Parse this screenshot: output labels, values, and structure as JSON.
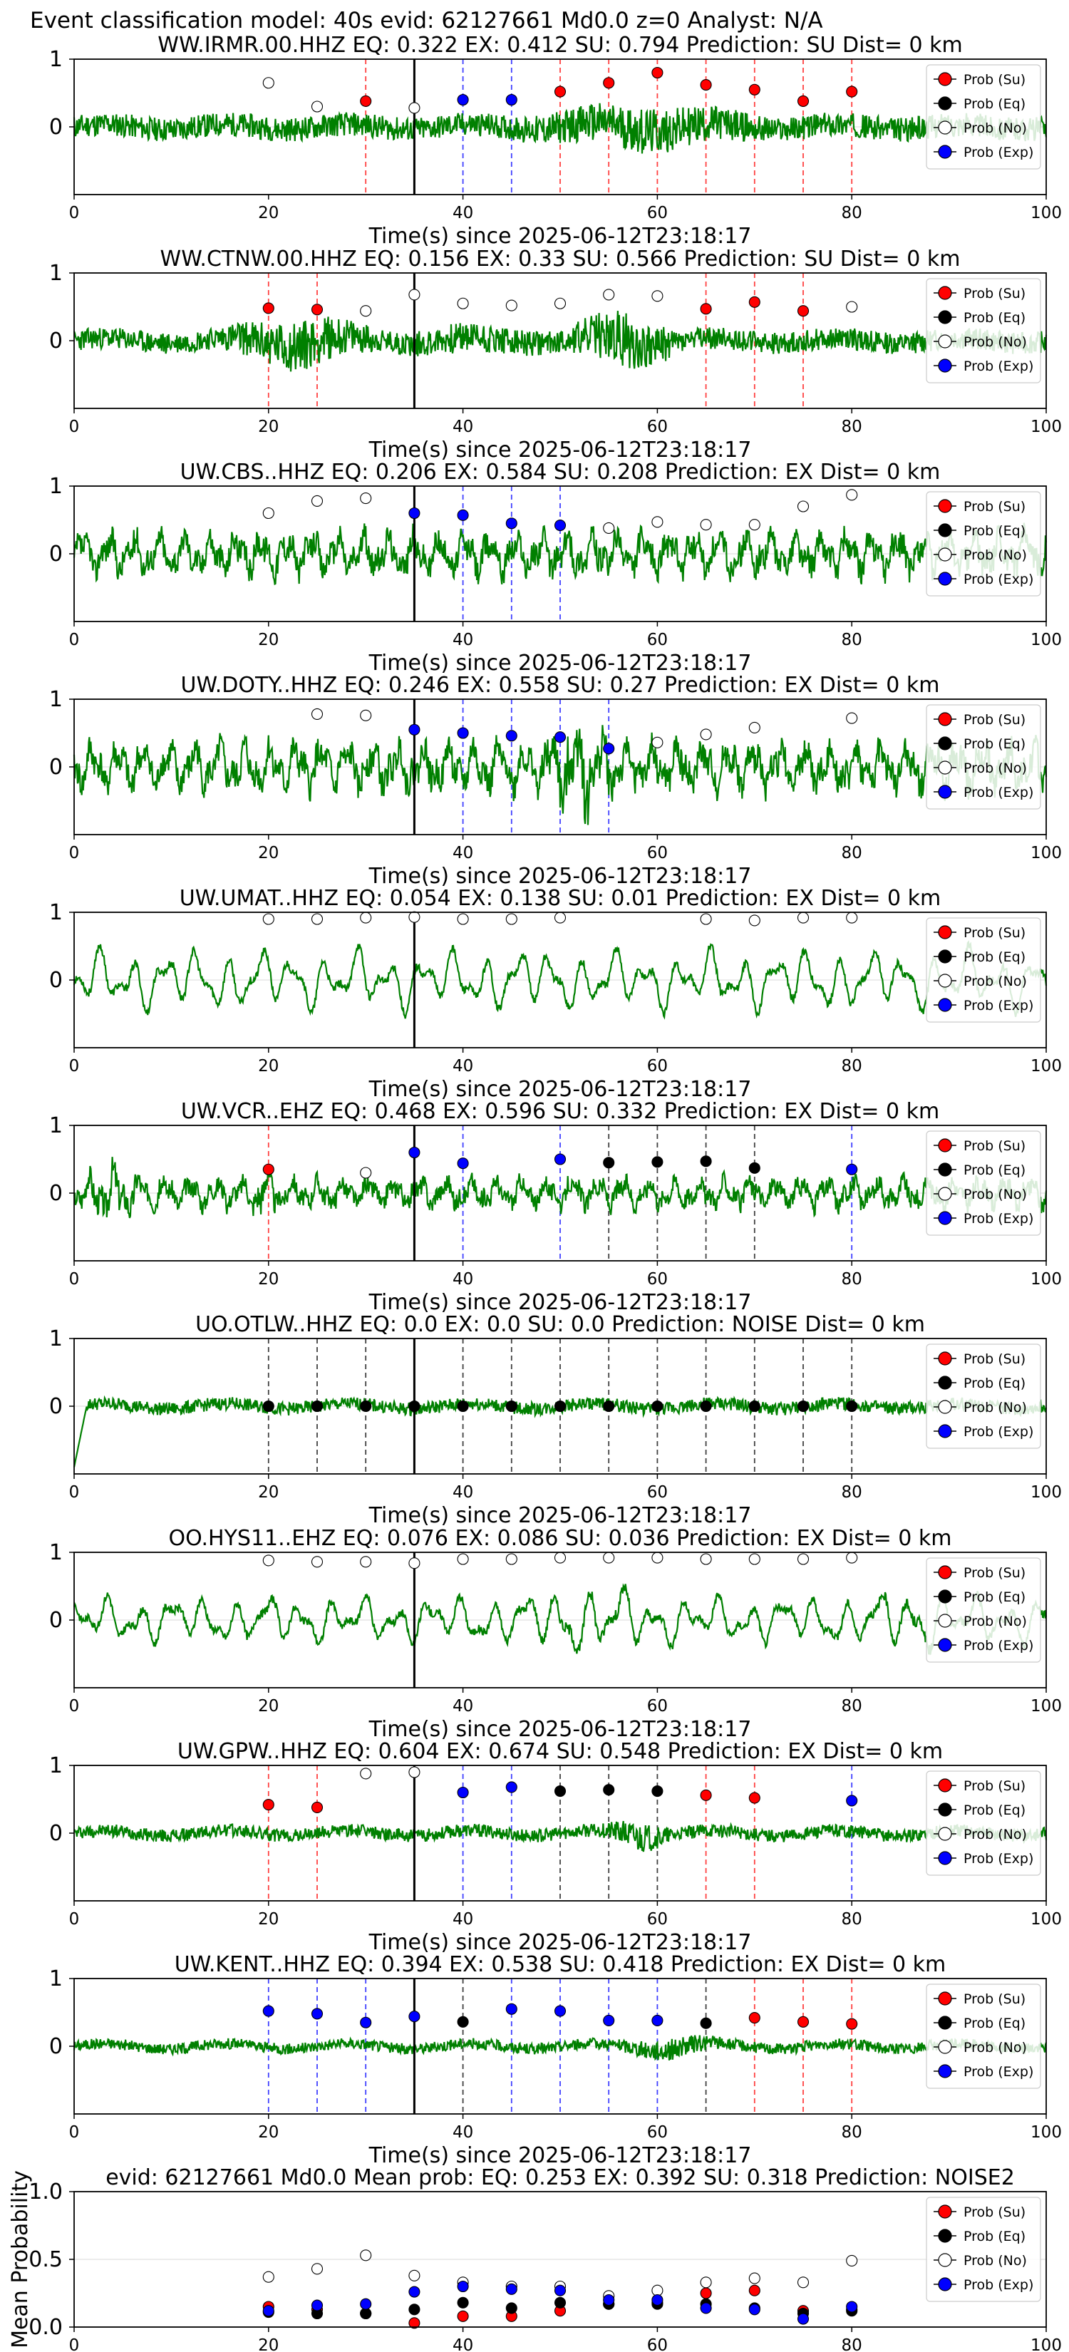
{
  "suptitle": "Event classification model: 40s evid: 62127661 Md0.0 z=0 Analyst: N/A",
  "legend_labels": [
    "Prob (Su)",
    "Prob (Eq)",
    "Prob (No)",
    "Prob (Exp)"
  ],
  "colors": {
    "su": "#ff0000",
    "eq": "#000000",
    "no": "#ffffff",
    "exp": "#0000ff",
    "trace": "#008000"
  },
  "chart_data": [
    {
      "type": "line",
      "title": "WW.IRMR.00.HHZ    EQ: 0.322  EX: 0.412  SU: 0.794   Prediction: SU    Dist= 0 km",
      "xlabel": "Time(s) since 2025-06-12T23:18:17",
      "xlim": [
        0,
        100
      ],
      "ylim": [
        -1,
        1
      ],
      "xticks": [
        0,
        20,
        40,
        60,
        80,
        100
      ],
      "yticks": [
        0,
        1
      ],
      "points": [
        {
          "t": 20,
          "p": 0.65,
          "c": "No"
        },
        {
          "t": 25,
          "p": 0.3,
          "c": "No"
        },
        {
          "t": 30,
          "p": 0.38,
          "c": "Su"
        },
        {
          "t": 35,
          "p": 0.28,
          "c": "No"
        },
        {
          "t": 40,
          "p": 0.4,
          "c": "Exp"
        },
        {
          "t": 45,
          "p": 0.4,
          "c": "Exp"
        },
        {
          "t": 50,
          "p": 0.52,
          "c": "Su"
        },
        {
          "t": 55,
          "p": 0.65,
          "c": "Su"
        },
        {
          "t": 60,
          "p": 0.8,
          "c": "Su"
        },
        {
          "t": 65,
          "p": 0.62,
          "c": "Su"
        },
        {
          "t": 70,
          "p": 0.55,
          "c": "Su"
        },
        {
          "t": 75,
          "p": 0.38,
          "c": "Su"
        },
        {
          "t": 80,
          "p": 0.52,
          "c": "Su"
        }
      ],
      "trace": {
        "seed": 11,
        "amp": 0.22,
        "bursts": [
          [
            45,
            72,
            2.0
          ]
        ],
        "style": "noise"
      }
    },
    {
      "type": "line",
      "title": "WW.CTNW.00.HHZ    EQ: 0.156  EX: 0.33  SU: 0.566   Prediction: SU    Dist= 0 km",
      "xlabel": "Time(s) since 2025-06-12T23:18:17",
      "xlim": [
        0,
        100
      ],
      "ylim": [
        -1,
        1
      ],
      "xticks": [
        0,
        20,
        40,
        60,
        80,
        100
      ],
      "yticks": [
        0,
        1
      ],
      "points": [
        {
          "t": 20,
          "p": 0.48,
          "c": "Su"
        },
        {
          "t": 25,
          "p": 0.46,
          "c": "Su"
        },
        {
          "t": 30,
          "p": 0.44,
          "c": "No"
        },
        {
          "t": 35,
          "p": 0.68,
          "c": "No"
        },
        {
          "t": 40,
          "p": 0.55,
          "c": "No"
        },
        {
          "t": 45,
          "p": 0.52,
          "c": "No"
        },
        {
          "t": 50,
          "p": 0.55,
          "c": "No"
        },
        {
          "t": 55,
          "p": 0.68,
          "c": "No"
        },
        {
          "t": 60,
          "p": 0.66,
          "c": "No"
        },
        {
          "t": 65,
          "p": 0.47,
          "c": "Su"
        },
        {
          "t": 70,
          "p": 0.57,
          "c": "Su"
        },
        {
          "t": 75,
          "p": 0.44,
          "c": "Su"
        },
        {
          "t": 80,
          "p": 0.5,
          "c": "No"
        }
      ],
      "trace": {
        "seed": 23,
        "amp": 0.2,
        "bursts": [
          [
            14,
            32,
            2.5
          ],
          [
            50,
            63,
            2.8
          ],
          [
            32,
            50,
            1.5
          ]
        ],
        "style": "noise"
      }
    },
    {
      "type": "line",
      "title": "UW.CBS..HHZ   EQ: 0.206  EX: 0.584  SU: 0.208   Prediction: EX    Dist= 0 km",
      "xlabel": "Time(s) since 2025-06-12T23:18:17",
      "xlim": [
        0,
        100
      ],
      "ylim": [
        -1,
        1
      ],
      "xticks": [
        0,
        20,
        40,
        60,
        80,
        100
      ],
      "yticks": [
        0,
        1
      ],
      "points": [
        {
          "t": 20,
          "p": 0.6,
          "c": "No"
        },
        {
          "t": 25,
          "p": 0.78,
          "c": "No"
        },
        {
          "t": 30,
          "p": 0.82,
          "c": "No"
        },
        {
          "t": 35,
          "p": 0.6,
          "c": "Exp"
        },
        {
          "t": 40,
          "p": 0.57,
          "c": "Exp"
        },
        {
          "t": 45,
          "p": 0.45,
          "c": "Exp"
        },
        {
          "t": 50,
          "p": 0.42,
          "c": "Exp"
        },
        {
          "t": 55,
          "p": 0.38,
          "c": "No"
        },
        {
          "t": 60,
          "p": 0.47,
          "c": "No"
        },
        {
          "t": 65,
          "p": 0.43,
          "c": "No"
        },
        {
          "t": 70,
          "p": 0.43,
          "c": "No"
        },
        {
          "t": 75,
          "p": 0.7,
          "c": "No"
        },
        {
          "t": 80,
          "p": 0.87,
          "c": "No"
        }
      ],
      "trace": {
        "seed": 37,
        "amp": 0.35,
        "bursts": [],
        "style": "wavy"
      }
    },
    {
      "type": "line",
      "title": "UW.DOTY..HHZ   EQ: 0.246  EX: 0.558  SU: 0.27   Prediction: EX    Dist= 0 km",
      "xlabel": "Time(s) since 2025-06-12T23:18:17",
      "xlim": [
        0,
        100
      ],
      "ylim": [
        -1,
        1
      ],
      "xticks": [
        0,
        20,
        40,
        60,
        80,
        100
      ],
      "yticks": [
        0,
        1
      ],
      "points": [
        {
          "t": 25,
          "p": 0.78,
          "c": "No"
        },
        {
          "t": 30,
          "p": 0.76,
          "c": "No"
        },
        {
          "t": 35,
          "p": 0.55,
          "c": "Exp"
        },
        {
          "t": 40,
          "p": 0.5,
          "c": "Exp"
        },
        {
          "t": 45,
          "p": 0.46,
          "c": "Exp"
        },
        {
          "t": 50,
          "p": 0.44,
          "c": "Exp"
        },
        {
          "t": 55,
          "p": 0.27,
          "c": "Exp"
        },
        {
          "t": 60,
          "p": 0.36,
          "c": "No"
        },
        {
          "t": 65,
          "p": 0.48,
          "c": "No"
        },
        {
          "t": 70,
          "p": 0.58,
          "c": "No"
        },
        {
          "t": 80,
          "p": 0.72,
          "c": "No"
        }
      ],
      "trace": {
        "seed": 41,
        "amp": 0.4,
        "bursts": [
          [
            48,
            56,
            2.2
          ]
        ],
        "style": "wavy"
      }
    },
    {
      "type": "line",
      "title": "UW.UMAT..HHZ   EQ: 0.054  EX: 0.138  SU: 0.01   Prediction: EX    Dist= 0 km",
      "xlabel": "Time(s) since 2025-06-12T23:18:17",
      "xlim": [
        0,
        100
      ],
      "ylim": [
        -1,
        1
      ],
      "xticks": [
        0,
        20,
        40,
        60,
        80,
        100
      ],
      "yticks": [
        0,
        1
      ],
      "points": [
        {
          "t": 20,
          "p": 0.9,
          "c": "No"
        },
        {
          "t": 25,
          "p": 0.9,
          "c": "No"
        },
        {
          "t": 30,
          "p": 0.92,
          "c": "No"
        },
        {
          "t": 35,
          "p": 0.93,
          "c": "No"
        },
        {
          "t": 40,
          "p": 0.9,
          "c": "No"
        },
        {
          "t": 45,
          "p": 0.9,
          "c": "No"
        },
        {
          "t": 50,
          "p": 0.92,
          "c": "No"
        },
        {
          "t": 65,
          "p": 0.9,
          "c": "No"
        },
        {
          "t": 70,
          "p": 0.88,
          "c": "No"
        },
        {
          "t": 75,
          "p": 0.92,
          "c": "No"
        },
        {
          "t": 80,
          "p": 0.92,
          "c": "No"
        }
      ],
      "trace": {
        "seed": 53,
        "amp": 0.45,
        "bursts": [],
        "style": "smooth"
      }
    },
    {
      "type": "line",
      "title": "UW.VCR..EHZ   EQ: 0.468  EX: 0.596  SU: 0.332   Prediction: EX    Dist= 0 km",
      "xlabel": "Time(s) since 2025-06-12T23:18:17",
      "xlim": [
        0,
        100
      ],
      "ylim": [
        -1,
        1
      ],
      "xticks": [
        0,
        20,
        40,
        60,
        80,
        100
      ],
      "yticks": [
        0,
        1
      ],
      "points": [
        {
          "t": 20,
          "p": 0.35,
          "c": "Su"
        },
        {
          "t": 30,
          "p": 0.3,
          "c": "No"
        },
        {
          "t": 35,
          "p": 0.6,
          "c": "Exp"
        },
        {
          "t": 40,
          "p": 0.44,
          "c": "Exp"
        },
        {
          "t": 50,
          "p": 0.5,
          "c": "Exp"
        },
        {
          "t": 55,
          "p": 0.45,
          "c": "Eq"
        },
        {
          "t": 60,
          "p": 0.46,
          "c": "Eq"
        },
        {
          "t": 65,
          "p": 0.47,
          "c": "Eq"
        },
        {
          "t": 70,
          "p": 0.37,
          "c": "Eq"
        },
        {
          "t": 80,
          "p": 0.35,
          "c": "Exp"
        }
      ],
      "trace": {
        "seed": 67,
        "amp": 0.25,
        "bursts": [
          [
            0,
            8,
            1.8
          ],
          [
            18,
            21,
            2.0
          ]
        ],
        "style": "wavy"
      }
    },
    {
      "type": "line",
      "title": "UO.OTLW..HHZ   EQ: 0.0  EX: 0.0  SU: 0.0   Prediction: NOISE    Dist= 0 km",
      "xlabel": "Time(s) since 2025-06-12T23:18:17",
      "xlim": [
        0,
        100
      ],
      "ylim": [
        -1,
        1
      ],
      "xticks": [
        0,
        20,
        40,
        60,
        80,
        100
      ],
      "yticks": [
        0,
        1
      ],
      "points": [
        {
          "t": 20,
          "p": 0.0,
          "c": "Eq"
        },
        {
          "t": 25,
          "p": 0.0,
          "c": "Eq"
        },
        {
          "t": 30,
          "p": 0.0,
          "c": "Eq"
        },
        {
          "t": 35,
          "p": 0.0,
          "c": "Eq"
        },
        {
          "t": 40,
          "p": 0.0,
          "c": "Eq"
        },
        {
          "t": 45,
          "p": 0.0,
          "c": "Eq"
        },
        {
          "t": 50,
          "p": 0.0,
          "c": "Eq"
        },
        {
          "t": 55,
          "p": 0.0,
          "c": "Eq"
        },
        {
          "t": 60,
          "p": 0.0,
          "c": "Eq"
        },
        {
          "t": 65,
          "p": 0.0,
          "c": "Eq"
        },
        {
          "t": 70,
          "p": 0.0,
          "c": "Eq"
        },
        {
          "t": 75,
          "p": 0.0,
          "c": "Eq"
        },
        {
          "t": 80,
          "p": 0.0,
          "c": "Eq"
        }
      ],
      "trace": {
        "seed": 79,
        "amp": 0.12,
        "bursts": [],
        "style": "noise",
        "start_dip": true
      }
    },
    {
      "type": "line",
      "title": "OO.HYS11..EHZ   EQ: 0.076  EX: 0.086  SU: 0.036   Prediction: EX    Dist= 0 km",
      "xlabel": "Time(s) since 2025-06-12T23:18:17",
      "xlim": [
        0,
        100
      ],
      "ylim": [
        -1,
        1
      ],
      "xticks": [
        0,
        20,
        40,
        60,
        80,
        100
      ],
      "yticks": [
        0,
        1
      ],
      "points": [
        {
          "t": 20,
          "p": 0.88,
          "c": "No"
        },
        {
          "t": 25,
          "p": 0.86,
          "c": "No"
        },
        {
          "t": 30,
          "p": 0.86,
          "c": "No"
        },
        {
          "t": 35,
          "p": 0.84,
          "c": "No"
        },
        {
          "t": 40,
          "p": 0.9,
          "c": "No"
        },
        {
          "t": 45,
          "p": 0.9,
          "c": "No"
        },
        {
          "t": 50,
          "p": 0.92,
          "c": "No"
        },
        {
          "t": 55,
          "p": 0.92,
          "c": "No"
        },
        {
          "t": 60,
          "p": 0.92,
          "c": "No"
        },
        {
          "t": 65,
          "p": 0.9,
          "c": "No"
        },
        {
          "t": 70,
          "p": 0.9,
          "c": "No"
        },
        {
          "t": 75,
          "p": 0.9,
          "c": "No"
        },
        {
          "t": 80,
          "p": 0.92,
          "c": "No"
        }
      ],
      "trace": {
        "seed": 83,
        "amp": 0.35,
        "bursts": [
          [
            45,
            62,
            1.6
          ],
          [
            80,
            92,
            1.4
          ]
        ],
        "style": "smooth"
      }
    },
    {
      "type": "line",
      "title": "UW.GPW..HHZ   EQ: 0.604  EX: 0.674  SU: 0.548   Prediction: EX    Dist= 0 km",
      "xlabel": "Time(s) since 2025-06-12T23:18:17",
      "xlim": [
        0,
        100
      ],
      "ylim": [
        -1,
        1
      ],
      "xticks": [
        0,
        20,
        40,
        60,
        80,
        100
      ],
      "yticks": [
        0,
        1
      ],
      "points": [
        {
          "t": 20,
          "p": 0.42,
          "c": "Su"
        },
        {
          "t": 25,
          "p": 0.38,
          "c": "Su"
        },
        {
          "t": 30,
          "p": 0.88,
          "c": "No"
        },
        {
          "t": 35,
          "p": 0.9,
          "c": "No"
        },
        {
          "t": 40,
          "p": 0.6,
          "c": "Exp"
        },
        {
          "t": 45,
          "p": 0.68,
          "c": "Exp"
        },
        {
          "t": 50,
          "p": 0.62,
          "c": "Eq"
        },
        {
          "t": 55,
          "p": 0.64,
          "c": "Eq"
        },
        {
          "t": 60,
          "p": 0.62,
          "c": "Eq"
        },
        {
          "t": 65,
          "p": 0.56,
          "c": "Su"
        },
        {
          "t": 70,
          "p": 0.52,
          "c": "Su"
        },
        {
          "t": 80,
          "p": 0.48,
          "c": "Exp"
        }
      ],
      "trace": {
        "seed": 97,
        "amp": 0.12,
        "bursts": [
          [
            54,
            62,
            2.4
          ]
        ],
        "style": "noise"
      }
    },
    {
      "type": "line",
      "title": "UW.KENT..HHZ   EQ: 0.394  EX: 0.538  SU: 0.418   Prediction: EX    Dist= 0 km",
      "xlabel": "Time(s) since 2025-06-12T23:18:17",
      "xlim": [
        0,
        100
      ],
      "ylim": [
        -1,
        1
      ],
      "xticks": [
        0,
        20,
        40,
        60,
        80,
        100
      ],
      "yticks": [
        0,
        1
      ],
      "points": [
        {
          "t": 20,
          "p": 0.52,
          "c": "Exp"
        },
        {
          "t": 25,
          "p": 0.48,
          "c": "Exp"
        },
        {
          "t": 30,
          "p": 0.35,
          "c": "Exp"
        },
        {
          "t": 35,
          "p": 0.44,
          "c": "Exp"
        },
        {
          "t": 40,
          "p": 0.36,
          "c": "Eq"
        },
        {
          "t": 45,
          "p": 0.55,
          "c": "Exp"
        },
        {
          "t": 50,
          "p": 0.52,
          "c": "Exp"
        },
        {
          "t": 55,
          "p": 0.38,
          "c": "Exp"
        },
        {
          "t": 60,
          "p": 0.38,
          "c": "Exp"
        },
        {
          "t": 65,
          "p": 0.34,
          "c": "Eq"
        },
        {
          "t": 70,
          "p": 0.42,
          "c": "Su"
        },
        {
          "t": 75,
          "p": 0.36,
          "c": "Su"
        },
        {
          "t": 80,
          "p": 0.33,
          "c": "Su"
        }
      ],
      "trace": {
        "seed": 101,
        "amp": 0.1,
        "bursts": [
          [
            55,
            68,
            2.0
          ]
        ],
        "style": "noise"
      }
    },
    {
      "type": "scatter",
      "title": "evid: 62127661  Md0.0   Mean prob:   EQ: 0.253  EX: 0.392  SU: 0.318   Prediction: NOISE2",
      "xlabel": "",
      "ylabel": "Mean Probability",
      "xlim": [
        0,
        100
      ],
      "ylim": [
        0,
        1
      ],
      "xticks": [
        0,
        20,
        40,
        60,
        80,
        100
      ],
      "yticks": [
        0.0,
        0.5,
        1.0
      ],
      "series": [
        {
          "name": "Prob (Su)",
          "x": [
            20,
            25,
            30,
            35,
            40,
            45,
            50,
            55,
            60,
            65,
            70,
            75,
            80
          ],
          "y": [
            0.15,
            0.13,
            0.1,
            0.03,
            0.08,
            0.08,
            0.12,
            0.17,
            0.18,
            0.25,
            0.27,
            0.12,
            0.13
          ]
        },
        {
          "name": "Prob (Eq)",
          "x": [
            20,
            25,
            30,
            35,
            40,
            45,
            50,
            55,
            60,
            65,
            70,
            75,
            80
          ],
          "y": [
            0.11,
            0.1,
            0.1,
            0.13,
            0.18,
            0.14,
            0.18,
            0.17,
            0.17,
            0.17,
            0.14,
            0.1,
            0.12
          ]
        },
        {
          "name": "Prob (No)",
          "x": [
            20,
            25,
            30,
            35,
            40,
            45,
            50,
            55,
            60,
            65,
            70,
            75,
            80
          ],
          "y": [
            0.37,
            0.43,
            0.53,
            0.38,
            0.33,
            0.3,
            0.3,
            0.23,
            0.27,
            0.33,
            0.36,
            0.33,
            0.49
          ]
        },
        {
          "name": "Prob (Exp)",
          "x": [
            20,
            25,
            30,
            35,
            40,
            45,
            50,
            55,
            60,
            65,
            70,
            75,
            80
          ],
          "y": [
            0.12,
            0.16,
            0.17,
            0.26,
            0.3,
            0.28,
            0.27,
            0.2,
            0.2,
            0.14,
            0.13,
            0.06,
            0.15
          ]
        }
      ]
    }
  ]
}
